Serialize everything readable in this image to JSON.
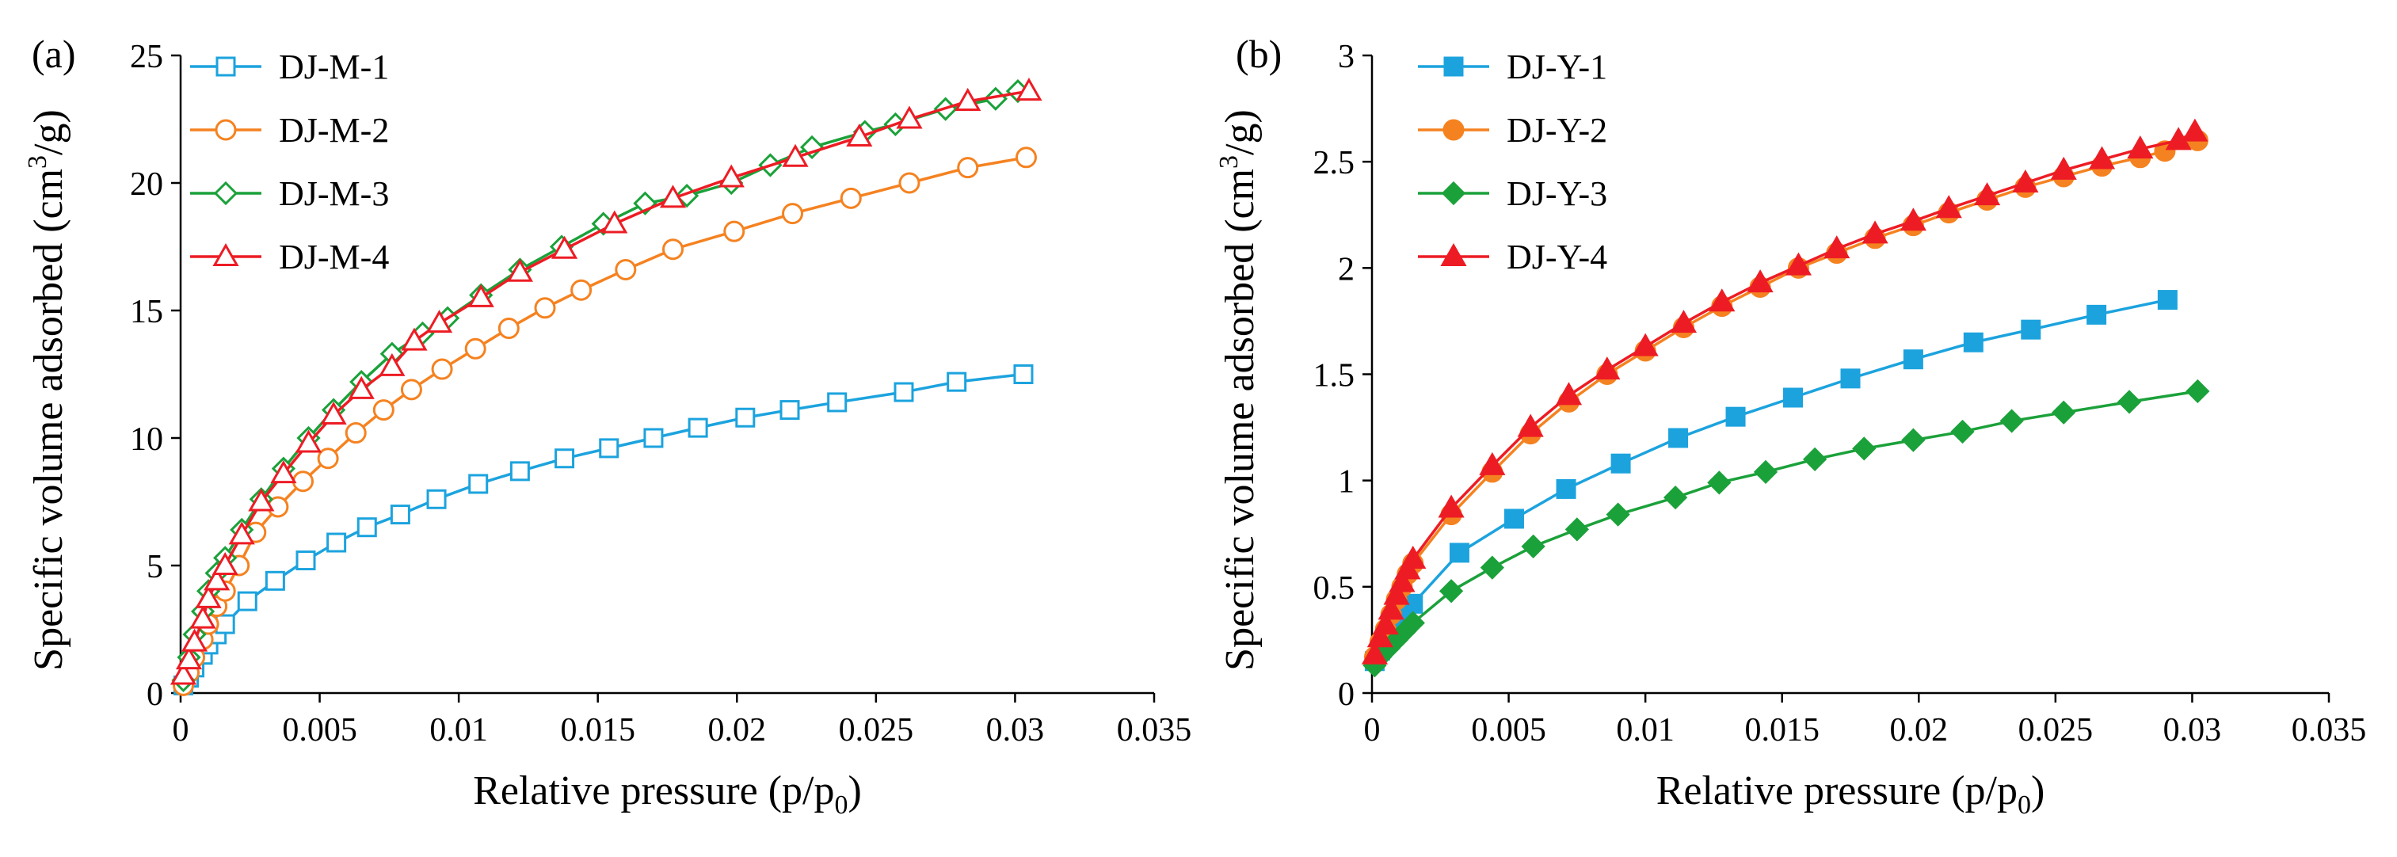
{
  "chart_data": [
    {
      "panel_label": "(a)",
      "type": "line",
      "xlabel": "Relative pressure (p/p",
      "xlabel_sub": "0",
      "xlabel_end": ")",
      "ylabel": "Specific volume adsorbed (cm",
      "ylabel_sup": "3",
      "ylabel_end": "/g)",
      "xlim": [
        0,
        0.035
      ],
      "ylim": [
        0,
        25
      ],
      "xticks": [
        0,
        0.005,
        0.01,
        0.015,
        0.02,
        0.025,
        0.03,
        0.035
      ],
      "xtick_labels": [
        "0",
        "0.005",
        "0.01",
        "0.015",
        "0.02",
        "0.025",
        "0.03",
        "0.035"
      ],
      "yticks": [
        0,
        5,
        10,
        15,
        20,
        25
      ],
      "ytick_labels": [
        "0",
        "5",
        "10",
        "15",
        "20",
        "25"
      ],
      "legend_position": "top-left",
      "series": [
        {
          "name": "DJ-M-1",
          "color": "#1CA3DE",
          "marker": "square-open",
          "x": [
            0.0001,
            0.0003,
            0.0005,
            0.0008,
            0.001,
            0.0013,
            0.0016,
            0.0024,
            0.0034,
            0.0045,
            0.0056,
            0.0067,
            0.0079,
            0.0092,
            0.0107,
            0.0122,
            0.0138,
            0.0154,
            0.017,
            0.0186,
            0.0203,
            0.0219,
            0.0236,
            0.026,
            0.0279,
            0.0303
          ],
          "y": [
            0.3,
            0.6,
            1.0,
            1.5,
            1.9,
            2.3,
            2.7,
            3.6,
            4.4,
            5.2,
            5.9,
            6.5,
            7.0,
            7.6,
            8.2,
            8.7,
            9.2,
            9.6,
            10.0,
            10.4,
            10.8,
            11.1,
            11.4,
            11.8,
            12.2,
            12.5
          ]
        },
        {
          "name": "DJ-M-2",
          "color": "#F58220",
          "marker": "circle-open",
          "x": [
            0.0001,
            0.0003,
            0.0005,
            0.0008,
            0.001,
            0.0013,
            0.0016,
            0.0021,
            0.0027,
            0.0035,
            0.0044,
            0.0053,
            0.0063,
            0.0073,
            0.0083,
            0.0094,
            0.0106,
            0.0118,
            0.0131,
            0.0144,
            0.016,
            0.0177,
            0.0199,
            0.022,
            0.0241,
            0.0262,
            0.0283,
            0.0304
          ],
          "y": [
            0.3,
            0.8,
            1.4,
            2.1,
            2.7,
            3.4,
            4.0,
            5.0,
            6.3,
            7.3,
            8.3,
            9.2,
            10.2,
            11.1,
            11.9,
            12.7,
            13.5,
            14.3,
            15.1,
            15.8,
            16.6,
            17.4,
            18.1,
            18.8,
            19.4,
            20.0,
            20.6,
            21.0
          ]
        },
        {
          "name": "DJ-M-3",
          "color": "#1BA13A",
          "marker": "diamond-open",
          "x": [
            0.0001,
            0.0003,
            0.0005,
            0.0008,
            0.001,
            0.0013,
            0.0016,
            0.0022,
            0.0029,
            0.0037,
            0.0046,
            0.0055,
            0.0065,
            0.0076,
            0.0087,
            0.0096,
            0.0108,
            0.0122,
            0.0137,
            0.0152,
            0.0167,
            0.0182,
            0.0198,
            0.0212,
            0.0227,
            0.0246,
            0.0257,
            0.0275,
            0.0293,
            0.0301
          ],
          "y": [
            0.5,
            1.4,
            2.3,
            3.2,
            4.0,
            4.7,
            5.3,
            6.4,
            7.6,
            8.8,
            10.0,
            11.1,
            12.2,
            13.3,
            14.1,
            14.7,
            15.6,
            16.6,
            17.5,
            18.4,
            19.2,
            19.5,
            20.0,
            20.7,
            21.4,
            22.0,
            22.3,
            22.9,
            23.3,
            23.6
          ]
        },
        {
          "name": "DJ-M-4",
          "color": "#ED1C24",
          "marker": "triangle-open",
          "x": [
            0.0001,
            0.0003,
            0.0005,
            0.0008,
            0.001,
            0.0013,
            0.0016,
            0.0022,
            0.0029,
            0.0037,
            0.0046,
            0.0055,
            0.0065,
            0.0076,
            0.0084,
            0.0093,
            0.0108,
            0.0122,
            0.0138,
            0.0156,
            0.0177,
            0.0198,
            0.0221,
            0.0244,
            0.0262,
            0.0283,
            0.0305
          ],
          "y": [
            0.7,
            1.3,
            2.0,
            2.9,
            3.7,
            4.4,
            5.0,
            6.2,
            7.5,
            8.6,
            9.8,
            10.9,
            11.9,
            12.8,
            13.8,
            14.5,
            15.5,
            16.5,
            17.4,
            18.4,
            19.4,
            20.2,
            21.0,
            21.8,
            22.5,
            23.2,
            23.6
          ]
        }
      ]
    },
    {
      "panel_label": "(b)",
      "type": "line",
      "xlabel": "Relative pressure (p/p",
      "xlabel_sub": "0",
      "xlabel_end": ")",
      "ylabel": "Specific volume adsorbed (cm",
      "ylabel_sup": "3",
      "ylabel_end": "/g)",
      "xlim": [
        0,
        0.035
      ],
      "ylim": [
        0,
        3
      ],
      "xticks": [
        0,
        0.005,
        0.01,
        0.015,
        0.02,
        0.025,
        0.03,
        0.035
      ],
      "xtick_labels": [
        "0",
        "0.005",
        "0.01",
        "0.015",
        "0.02",
        "0.025",
        "0.03",
        "0.035"
      ],
      "yticks": [
        0,
        0.5,
        1,
        1.5,
        2,
        2.5,
        3
      ],
      "ytick_labels": [
        "0",
        "0.5",
        "1",
        "1.5",
        "2",
        "2.5",
        "3"
      ],
      "legend_position": "top-left",
      "series": [
        {
          "name": "DJ-Y-1",
          "color": "#1CA3DE",
          "marker": "square-filled",
          "x": [
            0.0001,
            0.0003,
            0.0006,
            0.0009,
            0.0012,
            0.0015,
            0.0032,
            0.0052,
            0.0071,
            0.0091,
            0.0112,
            0.0133,
            0.0154,
            0.0175,
            0.0198,
            0.022,
            0.0241,
            0.0265,
            0.0291
          ],
          "y": [
            0.15,
            0.2,
            0.25,
            0.3,
            0.36,
            0.42,
            0.66,
            0.82,
            0.96,
            1.08,
            1.2,
            1.3,
            1.39,
            1.48,
            1.57,
            1.65,
            1.71,
            1.78,
            1.85
          ]
        },
        {
          "name": "DJ-Y-2",
          "color": "#F58220",
          "marker": "circle-filled",
          "x": [
            0.0001,
            0.0003,
            0.0005,
            0.0007,
            0.0009,
            0.0011,
            0.0013,
            0.0015,
            0.0029,
            0.0044,
            0.0058,
            0.0072,
            0.0086,
            0.01,
            0.0114,
            0.0128,
            0.0142,
            0.0156,
            0.017,
            0.0184,
            0.0198,
            0.0211,
            0.0225,
            0.0239,
            0.0253,
            0.0267,
            0.0281,
            0.029,
            0.0302
          ],
          "y": [
            0.17,
            0.24,
            0.3,
            0.37,
            0.44,
            0.5,
            0.56,
            0.61,
            0.84,
            1.04,
            1.22,
            1.37,
            1.5,
            1.61,
            1.72,
            1.82,
            1.91,
            2.0,
            2.07,
            2.14,
            2.2,
            2.26,
            2.32,
            2.38,
            2.43,
            2.48,
            2.52,
            2.55,
            2.6
          ]
        },
        {
          "name": "DJ-Y-3",
          "color": "#1BA13A",
          "marker": "diamond-filled",
          "x": [
            0.0001,
            0.0003,
            0.0006,
            0.0009,
            0.0012,
            0.0015,
            0.0029,
            0.0044,
            0.0059,
            0.0075,
            0.009,
            0.0111,
            0.0127,
            0.0144,
            0.0162,
            0.018,
            0.0198,
            0.0216,
            0.0234,
            0.0253,
            0.0277,
            0.0302
          ],
          "y": [
            0.13,
            0.17,
            0.21,
            0.25,
            0.29,
            0.33,
            0.48,
            0.59,
            0.69,
            0.77,
            0.84,
            0.92,
            0.99,
            1.04,
            1.1,
            1.15,
            1.19,
            1.23,
            1.28,
            1.32,
            1.37,
            1.42
          ]
        },
        {
          "name": "DJ-Y-4",
          "color": "#ED1C24",
          "marker": "triangle-filled",
          "x": [
            0.0001,
            0.0003,
            0.0005,
            0.0007,
            0.0009,
            0.0011,
            0.0013,
            0.0015,
            0.0029,
            0.0044,
            0.0058,
            0.0072,
            0.0086,
            0.01,
            0.0114,
            0.0128,
            0.0142,
            0.0156,
            0.017,
            0.0184,
            0.0198,
            0.0211,
            0.0225,
            0.0239,
            0.0253,
            0.0267,
            0.0281,
            0.0295,
            0.0301
          ],
          "y": [
            0.18,
            0.26,
            0.32,
            0.39,
            0.46,
            0.52,
            0.58,
            0.63,
            0.87,
            1.07,
            1.25,
            1.4,
            1.52,
            1.63,
            1.74,
            1.84,
            1.93,
            2.01,
            2.09,
            2.16,
            2.22,
            2.28,
            2.34,
            2.4,
            2.46,
            2.51,
            2.56,
            2.6,
            2.64
          ]
        }
      ]
    }
  ]
}
